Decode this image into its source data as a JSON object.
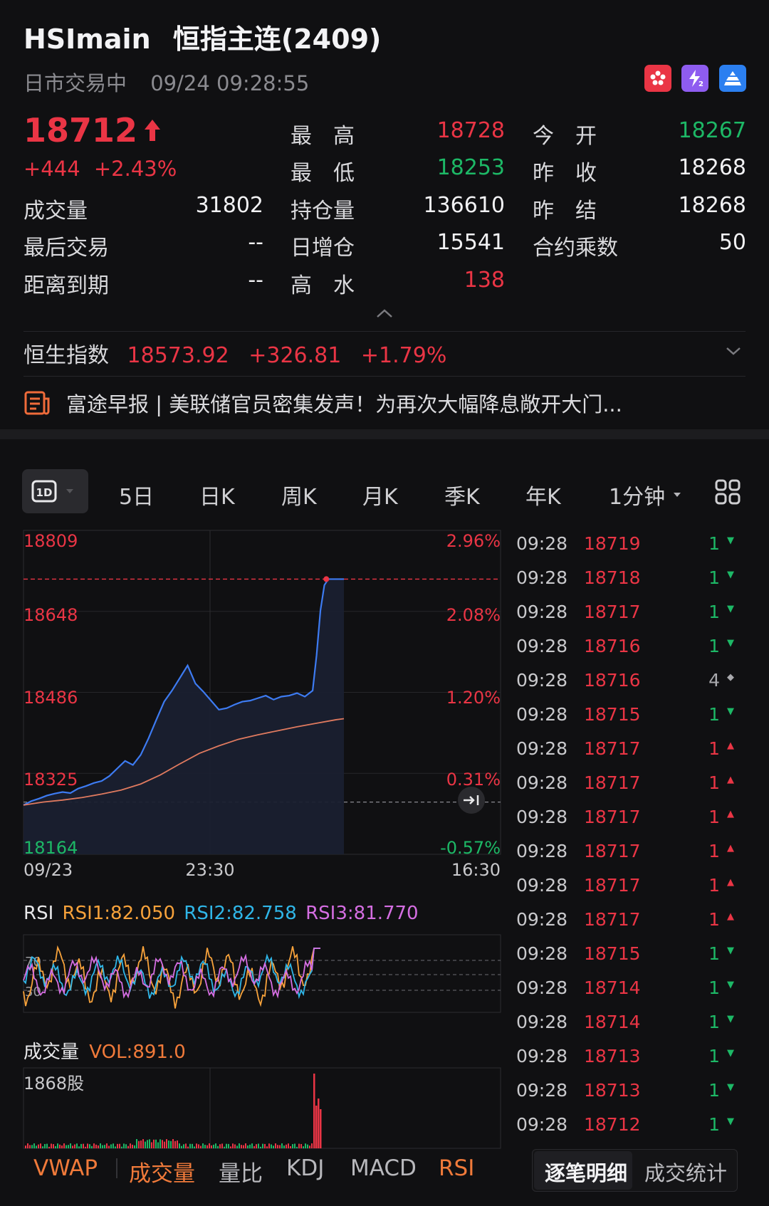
{
  "header": {
    "symbol": "HSImain",
    "name": "恒指主连(2409)",
    "session_status": "日市交易中",
    "datetime": "09/24 09:28:55",
    "badges": [
      {
        "icon": "hk-flag-icon",
        "color": "#ea3545"
      },
      {
        "icon": "level2-icon",
        "color": "#8e5cf0"
      },
      {
        "icon": "pyramid-icon",
        "color": "#2b7ff0"
      }
    ]
  },
  "quote": {
    "last_price": "18712",
    "direction": "up",
    "change": "+444",
    "change_pct": "+2.43%",
    "volume_label": "成交量",
    "volume": "31802",
    "last_trade_label": "最后交易",
    "last_trade": "--",
    "expiry_label": "距离到期",
    "expiry": "--",
    "high_label": "最　高",
    "high": "18728",
    "low_label": "最　低",
    "low": "18253",
    "open_interest_label": "持仓量",
    "open_interest": "136610",
    "oi_change_label": "日增仓",
    "oi_change": "15541",
    "premium_label": "高　水",
    "premium": "138",
    "open_label": "今　开",
    "open": "18267",
    "prev_close_label": "昨　收",
    "prev_close": "18268",
    "prev_settle_label": "昨　结",
    "prev_settle": "18268",
    "multiplier_label": "合约乘数",
    "multiplier": "50"
  },
  "index": {
    "name": "恒生指数",
    "value": "18573.92",
    "change": "+326.81",
    "change_pct": "+1.79%"
  },
  "news": {
    "text": "富途早报 | 美联储官员密集发声！为再次大幅降息敞开大门..."
  },
  "period_tabs": {
    "active": "1D",
    "items": [
      "5日",
      "日K",
      "周K",
      "月K",
      "季K",
      "年K",
      "1分钟"
    ]
  },
  "chart_data": {
    "type": "line",
    "price_axis": [
      "18809",
      "18648",
      "18486",
      "18325",
      "18164"
    ],
    "pct_axis": [
      "2.96%",
      "2.08%",
      "1.20%",
      "0.31%",
      "-0.57%"
    ],
    "time_axis": [
      "09/23",
      "23:30",
      "16:30"
    ],
    "ylim": [
      18164,
      18809
    ],
    "prev_close": 18268,
    "last": 18712,
    "series": [
      {
        "name": "price",
        "color": "#3d7bf2",
        "x": [
          0,
          4,
          8,
          12,
          16,
          20,
          24,
          28,
          32,
          36,
          40,
          44,
          48,
          52,
          56,
          60,
          64,
          68,
          72,
          76,
          80,
          84,
          88,
          92,
          96,
          100,
          104,
          108,
          112,
          116,
          120,
          124,
          128,
          132,
          136,
          140,
          144,
          148,
          150,
          152,
          154,
          156,
          158,
          160,
          162,
          164
        ],
        "values": [
          18262,
          18270,
          18275,
          18281,
          18285,
          18288,
          18286,
          18295,
          18300,
          18306,
          18310,
          18320,
          18335,
          18350,
          18342,
          18362,
          18395,
          18432,
          18468,
          18490,
          18515,
          18540,
          18504,
          18488,
          18470,
          18452,
          18455,
          18462,
          18468,
          18470,
          18475,
          18480,
          18472,
          18478,
          18480,
          18485,
          18478,
          18490,
          18560,
          18650,
          18700,
          18712,
          18712,
          18712,
          18712,
          18712
        ]
      },
      {
        "name": "avg",
        "color": "#e07a5f",
        "x": [
          0,
          10,
          20,
          30,
          40,
          50,
          60,
          70,
          80,
          90,
          100,
          110,
          120,
          130,
          140,
          150,
          160,
          164
        ],
        "values": [
          18262,
          18268,
          18272,
          18277,
          18284,
          18292,
          18304,
          18322,
          18344,
          18365,
          18380,
          18393,
          18402,
          18410,
          18418,
          18425,
          18432,
          18434
        ]
      }
    ]
  },
  "rsi": {
    "label": "RSI",
    "rsi1": "RSI1:82.050",
    "rsi2": "RSI2:82.758",
    "rsi3": "RSI3:81.770",
    "levels": [
      "70",
      "50",
      "30"
    ]
  },
  "volume_panel": {
    "label": "成交量",
    "vol": "VOL:891.0",
    "max_label": "1868股"
  },
  "ticks": [
    {
      "time": "09:28",
      "price": "18719",
      "qty": "1",
      "dir": "down"
    },
    {
      "time": "09:28",
      "price": "18718",
      "qty": "1",
      "dir": "down"
    },
    {
      "time": "09:28",
      "price": "18717",
      "qty": "1",
      "dir": "down"
    },
    {
      "time": "09:28",
      "price": "18716",
      "qty": "1",
      "dir": "down"
    },
    {
      "time": "09:28",
      "price": "18716",
      "qty": "4",
      "dir": "neutral"
    },
    {
      "time": "09:28",
      "price": "18715",
      "qty": "1",
      "dir": "down"
    },
    {
      "time": "09:28",
      "price": "18717",
      "qty": "1",
      "dir": "up"
    },
    {
      "time": "09:28",
      "price": "18717",
      "qty": "1",
      "dir": "up"
    },
    {
      "time": "09:28",
      "price": "18717",
      "qty": "1",
      "dir": "up"
    },
    {
      "time": "09:28",
      "price": "18717",
      "qty": "1",
      "dir": "up"
    },
    {
      "time": "09:28",
      "price": "18717",
      "qty": "1",
      "dir": "up"
    },
    {
      "time": "09:28",
      "price": "18717",
      "qty": "1",
      "dir": "up"
    },
    {
      "time": "09:28",
      "price": "18715",
      "qty": "1",
      "dir": "down"
    },
    {
      "time": "09:28",
      "price": "18714",
      "qty": "1",
      "dir": "down"
    },
    {
      "time": "09:28",
      "price": "18714",
      "qty": "1",
      "dir": "down"
    },
    {
      "time": "09:28",
      "price": "18713",
      "qty": "1",
      "dir": "down"
    },
    {
      "time": "09:28",
      "price": "18713",
      "qty": "1",
      "dir": "down"
    },
    {
      "time": "09:28",
      "price": "18712",
      "qty": "1",
      "dir": "down"
    }
  ],
  "indicator_tabs": [
    {
      "label": "VWAP",
      "color": "#f07a3a"
    },
    {
      "label": "成交量",
      "color": "#f07a3a"
    },
    {
      "label": "量比",
      "color": "#b8b8bc"
    },
    {
      "label": "KDJ",
      "color": "#b8b8bc"
    },
    {
      "label": "MACD",
      "color": "#b8b8bc"
    },
    {
      "label": "RSI",
      "color": "#f07a3a"
    }
  ],
  "tick_tabs": {
    "active": "逐笔明细",
    "other": "成交统计"
  },
  "colors": {
    "up": "#ea3545",
    "down": "#1db866",
    "accent": "#f07a3a",
    "line": "#3d7bf2"
  }
}
